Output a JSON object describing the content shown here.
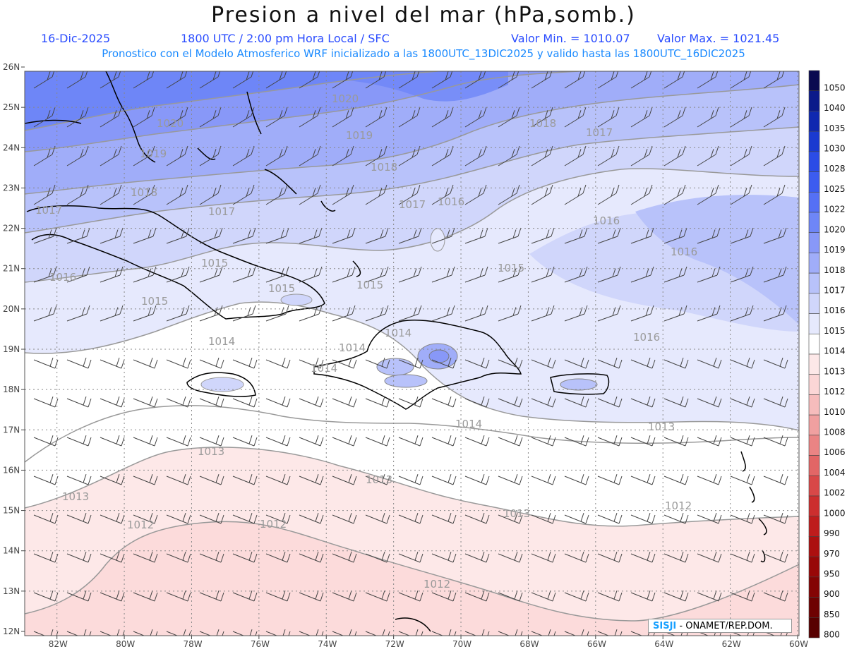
{
  "header": {
    "title": "Presion a nivel del mar (hPa,somb.)",
    "date": "16-Dic-2025",
    "time": "1800 UTC / 2:00 pm Hora Local / SFC",
    "min_label": "Valor Min. = 1010.07",
    "max_label": "Valor Max. = 1021.45",
    "model_line": "Pronostico con el Modelo Atmosferico WRF inicializado a las 1800UTC_13DIC2025 y valido hasta las  1800UTC_16DIC2025"
  },
  "map": {
    "lat_labels": [
      "26N",
      "25N",
      "24N",
      "23N",
      "22N",
      "21N",
      "20N",
      "19N",
      "18N",
      "17N",
      "16N",
      "15N",
      "14N",
      "13N",
      "12N"
    ],
    "lon_labels": [
      "82W",
      "80W",
      "78W",
      "76W",
      "74W",
      "72W",
      "70W",
      "68W",
      "66W",
      "64W",
      "62W",
      "60W"
    ],
    "contour_labels": [
      {
        "text": "1020"
      },
      {
        "text": "1020"
      },
      {
        "text": "1019"
      },
      {
        "text": "1019"
      },
      {
        "text": "1018"
      },
      {
        "text": "1018"
      },
      {
        "text": "1018"
      },
      {
        "text": "1017"
      },
      {
        "text": "1017"
      },
      {
        "text": "1017"
      },
      {
        "text": "1017"
      },
      {
        "text": "1016"
      },
      {
        "text": "1016"
      },
      {
        "text": "1016"
      },
      {
        "text": "1016"
      },
      {
        "text": "1015"
      },
      {
        "text": "1015"
      },
      {
        "text": "1015"
      },
      {
        "text": "1015"
      },
      {
        "text": "1015"
      },
      {
        "text": "1016"
      },
      {
        "text": "1014"
      },
      {
        "text": "1014"
      },
      {
        "text": "1014"
      },
      {
        "text": "1014"
      },
      {
        "text": "1014"
      },
      {
        "text": "1013"
      },
      {
        "text": "1013"
      },
      {
        "text": "1013"
      },
      {
        "text": "1013"
      },
      {
        "text": "1013"
      },
      {
        "text": "1012"
      },
      {
        "text": "1012"
      },
      {
        "text": "1012"
      },
      {
        "text": "1012"
      }
    ]
  },
  "legend": {
    "levels": [
      {
        "label": "1050",
        "color": "#0a0a50"
      },
      {
        "label": "1040",
        "color": "#0b1a8a"
      },
      {
        "label": "1035",
        "color": "#0f28b0"
      },
      {
        "label": "1030",
        "color": "#1a3ad0"
      },
      {
        "label": "1028",
        "color": "#2b4ce6"
      },
      {
        "label": "1025",
        "color": "#3c5cf0"
      },
      {
        "label": "1022",
        "color": "#5570f5"
      },
      {
        "label": "1020",
        "color": "#6e86f7"
      },
      {
        "label": "1019",
        "color": "#8898f8"
      },
      {
        "label": "1018",
        "color": "#a0adf9"
      },
      {
        "label": "1017",
        "color": "#b8c2fa"
      },
      {
        "label": "1016",
        "color": "#d0d6fb"
      },
      {
        "label": "1015",
        "color": "#e6e9fd"
      },
      {
        "label": "1014",
        "color": "#ffffff"
      },
      {
        "label": "1013",
        "color": "#fde8e8"
      },
      {
        "label": "1012",
        "color": "#fbd6d6"
      },
      {
        "label": "1010",
        "color": "#f6bcbc"
      },
      {
        "label": "1008",
        "color": "#f0a0a0"
      },
      {
        "label": "1006",
        "color": "#ea8484"
      },
      {
        "label": "1004",
        "color": "#e26666"
      },
      {
        "label": "1002",
        "color": "#d84848"
      },
      {
        "label": "1000",
        "color": "#cc2e2e"
      },
      {
        "label": "990",
        "color": "#be1c1c"
      },
      {
        "label": "970",
        "color": "#ac1010"
      },
      {
        "label": "950",
        "color": "#980808"
      },
      {
        "label": "900",
        "color": "#840404"
      },
      {
        "label": "850",
        "color": "#6e0202"
      },
      {
        "label": "800",
        "color": "#580000"
      }
    ]
  },
  "branding": {
    "logo_text": "SISJI",
    "org_text": " - ONAMET/REP.DOM."
  }
}
